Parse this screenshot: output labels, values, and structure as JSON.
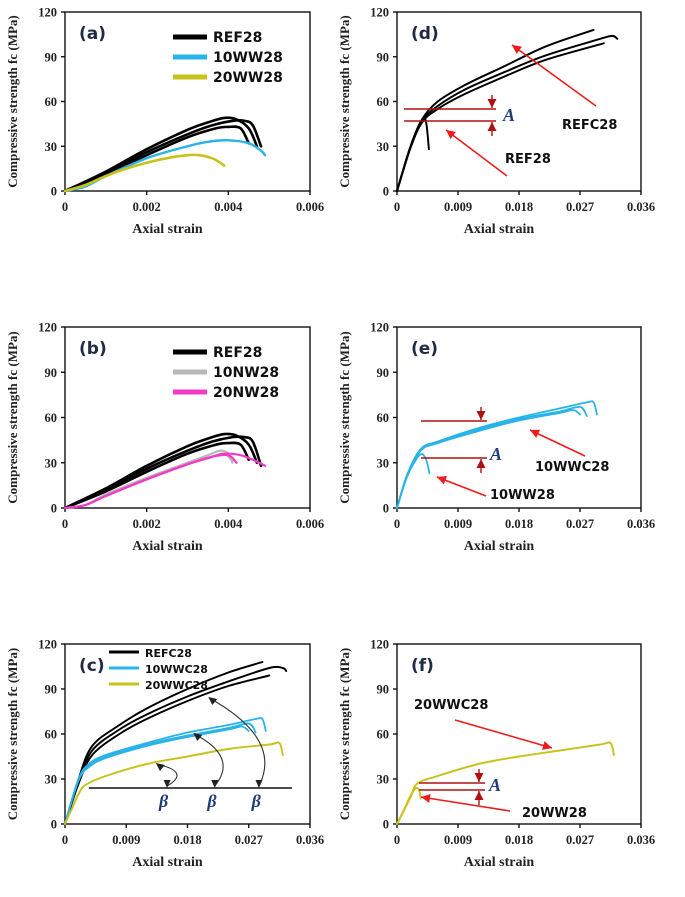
{
  "colors": {
    "REF": "#000000",
    "WW10": "#29b3e8",
    "WW20": "#c8c21a",
    "NW10": "#b8b8b8",
    "NW20": "#f03cc8",
    "arrow": "#ee1c1c",
    "dim": "#b01010",
    "symbol": "#1f3d7a"
  },
  "chart_data": [
    {
      "panel": "(a)",
      "type": "line",
      "xlabel": "Axial strain",
      "ylabel": "Compressive strength fc (MPa)",
      "xlim": [
        0,
        0.006
      ],
      "ylim": [
        0,
        120
      ],
      "xticks": [
        "0",
        "0.002",
        "0.004",
        "0.006"
      ],
      "yticks": [
        "0",
        "30",
        "60",
        "90",
        "120"
      ],
      "legend": {
        "position": "top-right",
        "entries": [
          {
            "label": "REF28",
            "color_key": "REF"
          },
          {
            "label": "10WW28",
            "color_key": "WW10"
          },
          {
            "label": "20WW28",
            "color_key": "WW20"
          }
        ]
      },
      "series": [
        {
          "name": "REF28",
          "color_key": "REF",
          "x": [
            0,
            0.001,
            0.002,
            0.003,
            0.0035,
            0.0039,
            0.0042,
            0.0045,
            0.0047
          ],
          "y": [
            0,
            13,
            28,
            41,
            46,
            49,
            48,
            42,
            30
          ]
        },
        {
          "name": "REF28",
          "color_key": "REF",
          "x": [
            0,
            0.001,
            0.002,
            0.003,
            0.0036,
            0.0041,
            0.0044,
            0.0046,
            0.0048
          ],
          "y": [
            0,
            12,
            26,
            38,
            44,
            47,
            47,
            44,
            30
          ]
        },
        {
          "name": "REF28",
          "color_key": "REF",
          "x": [
            0,
            0.001,
            0.002,
            0.003,
            0.0037,
            0.004,
            0.0043,
            0.0045
          ],
          "y": [
            0,
            11,
            24,
            36,
            42,
            43,
            42,
            32
          ]
        },
        {
          "name": "10WW28",
          "color_key": "WW10",
          "x": [
            0,
            0.0005,
            0.001,
            0.002,
            0.003,
            0.0035,
            0.004,
            0.0045,
            0.0048,
            0.0049
          ],
          "y": [
            0,
            3,
            10,
            22,
            30,
            33,
            34,
            32,
            27,
            24
          ]
        },
        {
          "name": "20WW28",
          "color_key": "WW20",
          "x": [
            0,
            0.0005,
            0.001,
            0.0015,
            0.002,
            0.0025,
            0.003,
            0.0033,
            0.0036,
            0.0038,
            0.0039
          ],
          "y": [
            0,
            4,
            10,
            15,
            19,
            22,
            24,
            24,
            22,
            19,
            17
          ]
        }
      ]
    },
    {
      "panel": "(b)",
      "type": "line",
      "xlabel": "Axial strain",
      "ylabel": "Compressive strength fc (MPa)",
      "xlim": [
        0,
        0.006
      ],
      "ylim": [
        0,
        120
      ],
      "xticks": [
        "0",
        "0.002",
        "0.004",
        "0.006"
      ],
      "yticks": [
        "0",
        "30",
        "60",
        "90",
        "120"
      ],
      "legend": {
        "position": "top-right",
        "entries": [
          {
            "label": "REF28",
            "color_key": "REF"
          },
          {
            "label": "10NW28",
            "color_key": "NW10"
          },
          {
            "label": "20NW28",
            "color_key": "NW20"
          }
        ]
      },
      "series": [
        {
          "name": "REF28",
          "color_key": "REF",
          "x": [
            0,
            0.001,
            0.002,
            0.003,
            0.0035,
            0.0039,
            0.0042,
            0.0045,
            0.0047
          ],
          "y": [
            0,
            13,
            28,
            41,
            46,
            49,
            48,
            42,
            30
          ]
        },
        {
          "name": "REF28",
          "color_key": "REF",
          "x": [
            0,
            0.001,
            0.002,
            0.003,
            0.0036,
            0.0041,
            0.0044,
            0.0046,
            0.0048
          ],
          "y": [
            0,
            12,
            26,
            38,
            44,
            47,
            47,
            44,
            28
          ]
        },
        {
          "name": "REF28",
          "color_key": "REF",
          "x": [
            0,
            0.001,
            0.002,
            0.003,
            0.0037,
            0.004,
            0.0043,
            0.0045
          ],
          "y": [
            0,
            11,
            24,
            36,
            42,
            43,
            42,
            32
          ]
        },
        {
          "name": "10NW28",
          "color_key": "NW10",
          "x": [
            0,
            0.0005,
            0.001,
            0.002,
            0.003,
            0.0035,
            0.0038,
            0.004,
            0.0041
          ],
          "y": [
            0,
            2,
            9,
            20,
            30,
            35,
            38,
            36,
            30
          ]
        },
        {
          "name": "10NW28",
          "color_key": "NW10",
          "x": [
            0,
            0.0005,
            0.001,
            0.002,
            0.003,
            0.0036,
            0.0039,
            0.0041
          ],
          "y": [
            0,
            2,
            8,
            19,
            29,
            34,
            36,
            31
          ]
        },
        {
          "name": "20NW28",
          "color_key": "NW20",
          "x": [
            0,
            0.0005,
            0.001,
            0.002,
            0.003,
            0.0035,
            0.0039,
            0.0043,
            0.0046,
            0.0049
          ],
          "y": [
            0,
            2,
            8,
            19,
            29,
            33,
            36,
            35,
            32,
            28
          ]
        },
        {
          "name": "20NW28",
          "color_key": "NW20",
          "x": [
            0,
            0.0005,
            0.001,
            0.002,
            0.003,
            0.0036,
            0.004,
            0.0042
          ],
          "y": [
            0,
            2,
            8,
            19,
            29,
            34,
            35,
            30
          ]
        }
      ]
    },
    {
      "panel": "(c)",
      "type": "line",
      "xlabel": "Axial strain",
      "ylabel": "Compressive strength fc (MPa)",
      "xlim": [
        0,
        0.036
      ],
      "ylim": [
        0,
        120
      ],
      "xticks": [
        "0",
        "0.009",
        "0.018",
        "0.027",
        "0.036"
      ],
      "yticks": [
        "0",
        "30",
        "60",
        "90",
        "120"
      ],
      "legend": {
        "position": "top-left",
        "entries": [
          {
            "label": "REFC28",
            "color_key": "REF"
          },
          {
            "label": "10WWC28",
            "color_key": "WW10"
          },
          {
            "label": "20WWC28",
            "color_key": "WW20"
          }
        ]
      },
      "series": [
        {
          "name": "REFC28",
          "color_key": "REF",
          "x": [
            0,
            0.002,
            0.004,
            0.008,
            0.012,
            0.018,
            0.024,
            0.029
          ],
          "y": [
            0,
            30,
            52,
            66,
            77,
            90,
            101,
            108
          ]
        },
        {
          "name": "REFC28",
          "color_key": "REF",
          "x": [
            0,
            0.002,
            0.004,
            0.008,
            0.012,
            0.018,
            0.024,
            0.03,
            0.032,
            0.0325
          ],
          "y": [
            0,
            28,
            49,
            63,
            73,
            85,
            95,
            104,
            104,
            102
          ]
        },
        {
          "name": "REFC28",
          "color_key": "REF",
          "x": [
            0,
            0.002,
            0.004,
            0.008,
            0.012,
            0.018,
            0.024,
            0.03
          ],
          "y": [
            0,
            27,
            46,
            60,
            70,
            82,
            92,
            99
          ]
        },
        {
          "name": "10WWC28",
          "color_key": "WW10",
          "x": [
            0,
            0.002,
            0.0035,
            0.006,
            0.012,
            0.018,
            0.024,
            0.028,
            0.029,
            0.0295
          ],
          "y": [
            0,
            30,
            40,
            46,
            54,
            61,
            66,
            70,
            70,
            62
          ]
        },
        {
          "name": "10WWC28",
          "color_key": "WW10",
          "x": [
            0,
            0.002,
            0.0035,
            0.006,
            0.012,
            0.018,
            0.024,
            0.027,
            0.028
          ],
          "y": [
            0,
            30,
            39,
            45,
            53,
            59,
            64,
            67,
            61
          ]
        },
        {
          "name": "10WWC28",
          "color_key": "WW10",
          "x": [
            0,
            0.002,
            0.0035,
            0.006,
            0.012,
            0.018,
            0.024,
            0.026,
            0.027
          ],
          "y": [
            0,
            29,
            38,
            44,
            52,
            58,
            63,
            65,
            62
          ]
        },
        {
          "name": "20WWC28",
          "color_key": "WW20",
          "x": [
            0,
            0.001,
            0.002,
            0.003,
            0.006,
            0.012,
            0.018,
            0.024,
            0.03,
            0.0315,
            0.032
          ],
          "y": [
            0,
            10,
            20,
            26,
            32,
            40,
            45,
            50,
            53,
            54,
            46
          ]
        }
      ],
      "annotations": {
        "symbol": "β",
        "reference_line_y": 24,
        "count": 3
      }
    },
    {
      "panel": "(d)",
      "type": "line",
      "xlabel": "Axial strain",
      "ylabel": "Compressive strength fc (MPa)",
      "xlim": [
        0,
        0.036
      ],
      "ylim": [
        0,
        120
      ],
      "xticks": [
        "0",
        "0.009",
        "0.018",
        "0.027",
        "0.036"
      ],
      "yticks": [
        "0",
        "30",
        "60",
        "90",
        "120"
      ],
      "series": [
        {
          "name": "REFC28",
          "color_key": "REF",
          "x": [
            0,
            0.002,
            0.0037,
            0.006,
            0.01,
            0.016,
            0.022,
            0.029
          ],
          "y": [
            0,
            30,
            48,
            60,
            71,
            84,
            97,
            108
          ]
        },
        {
          "name": "REFC28",
          "color_key": "REF",
          "x": [
            0,
            0.002,
            0.0037,
            0.006,
            0.01,
            0.016,
            0.022,
            0.03,
            0.0318,
            0.0325
          ],
          "y": [
            0,
            30,
            47,
            57,
            68,
            80,
            91,
            102,
            104,
            102
          ]
        },
        {
          "name": "REFC28",
          "color_key": "REF",
          "x": [
            0,
            0.002,
            0.0037,
            0.006,
            0.01,
            0.016,
            0.022,
            0.0305
          ],
          "y": [
            0,
            29,
            46,
            55,
            65,
            77,
            88,
            99
          ]
        },
        {
          "name": "REF28",
          "color_key": "REF",
          "x": [
            0,
            0.002,
            0.0037,
            0.0043,
            0.0047
          ],
          "y": [
            0,
            30,
            48,
            46,
            28
          ]
        }
      ],
      "annotations": {
        "labels": [
          "REFC28",
          "REF28"
        ],
        "gap_symbol": "A"
      }
    },
    {
      "panel": "(e)",
      "type": "line",
      "xlabel": "Axial strain",
      "ylabel": "Compressive strength fc (MPa)",
      "xlim": [
        0,
        0.036
      ],
      "ylim": [
        0,
        120
      ],
      "xticks": [
        "0",
        "0.009",
        "0.018",
        "0.027",
        "0.036"
      ],
      "yticks": [
        "0",
        "30",
        "60",
        "90",
        "120"
      ],
      "series": [
        {
          "name": "10WWC28",
          "color_key": "WW10",
          "x": [
            0,
            0.0015,
            0.0035,
            0.006,
            0.012,
            0.018,
            0.024,
            0.028,
            0.029,
            0.0295
          ],
          "y": [
            0,
            22,
            39,
            44,
            53,
            60,
            66,
            70,
            70,
            62
          ]
        },
        {
          "name": "10WWC28",
          "color_key": "WW10",
          "x": [
            0,
            0.0015,
            0.0035,
            0.006,
            0.012,
            0.018,
            0.024,
            0.027,
            0.028
          ],
          "y": [
            0,
            22,
            39,
            44,
            52,
            59,
            64,
            67,
            61
          ]
        },
        {
          "name": "10WWC28",
          "color_key": "WW10",
          "x": [
            0,
            0.0015,
            0.0035,
            0.006,
            0.012,
            0.018,
            0.024,
            0.026,
            0.027
          ],
          "y": [
            0,
            21,
            38,
            43,
            51,
            58,
            63,
            65,
            62
          ]
        },
        {
          "name": "10WW28",
          "color_key": "WW10",
          "x": [
            0,
            0.0015,
            0.0033,
            0.0042,
            0.0048
          ],
          "y": [
            0,
            21,
            35,
            33,
            23
          ]
        }
      ],
      "annotations": {
        "labels": [
          "10WWC28",
          "10WW28"
        ],
        "gap_symbol": "A"
      }
    },
    {
      "panel": "(f)",
      "type": "line",
      "xlabel": "Axial strain",
      "ylabel": "Compressive strength fc (MPa)",
      "xlim": [
        0,
        0.036
      ],
      "ylim": [
        0,
        120
      ],
      "xticks": [
        "0",
        "0.009",
        "0.018",
        "0.027",
        "0.036"
      ],
      "yticks": [
        "0",
        "30",
        "60",
        "90",
        "120"
      ],
      "series": [
        {
          "name": "20WWC28",
          "color_key": "WW20",
          "x": [
            0,
            0.001,
            0.002,
            0.003,
            0.006,
            0.012,
            0.018,
            0.024,
            0.03,
            0.0315,
            0.032
          ],
          "y": [
            0,
            9,
            18,
            27,
            32,
            40,
            45,
            49,
            53,
            54,
            46
          ]
        },
        {
          "name": "20WW28",
          "color_key": "WW20",
          "x": [
            0,
            0.001,
            0.002,
            0.0028,
            0.0033,
            0.0035
          ],
          "y": [
            0,
            9,
            19,
            24,
            22,
            17
          ]
        }
      ],
      "annotations": {
        "labels": [
          "20WWC28",
          "20WW28"
        ],
        "gap_symbol": "A"
      }
    }
  ]
}
